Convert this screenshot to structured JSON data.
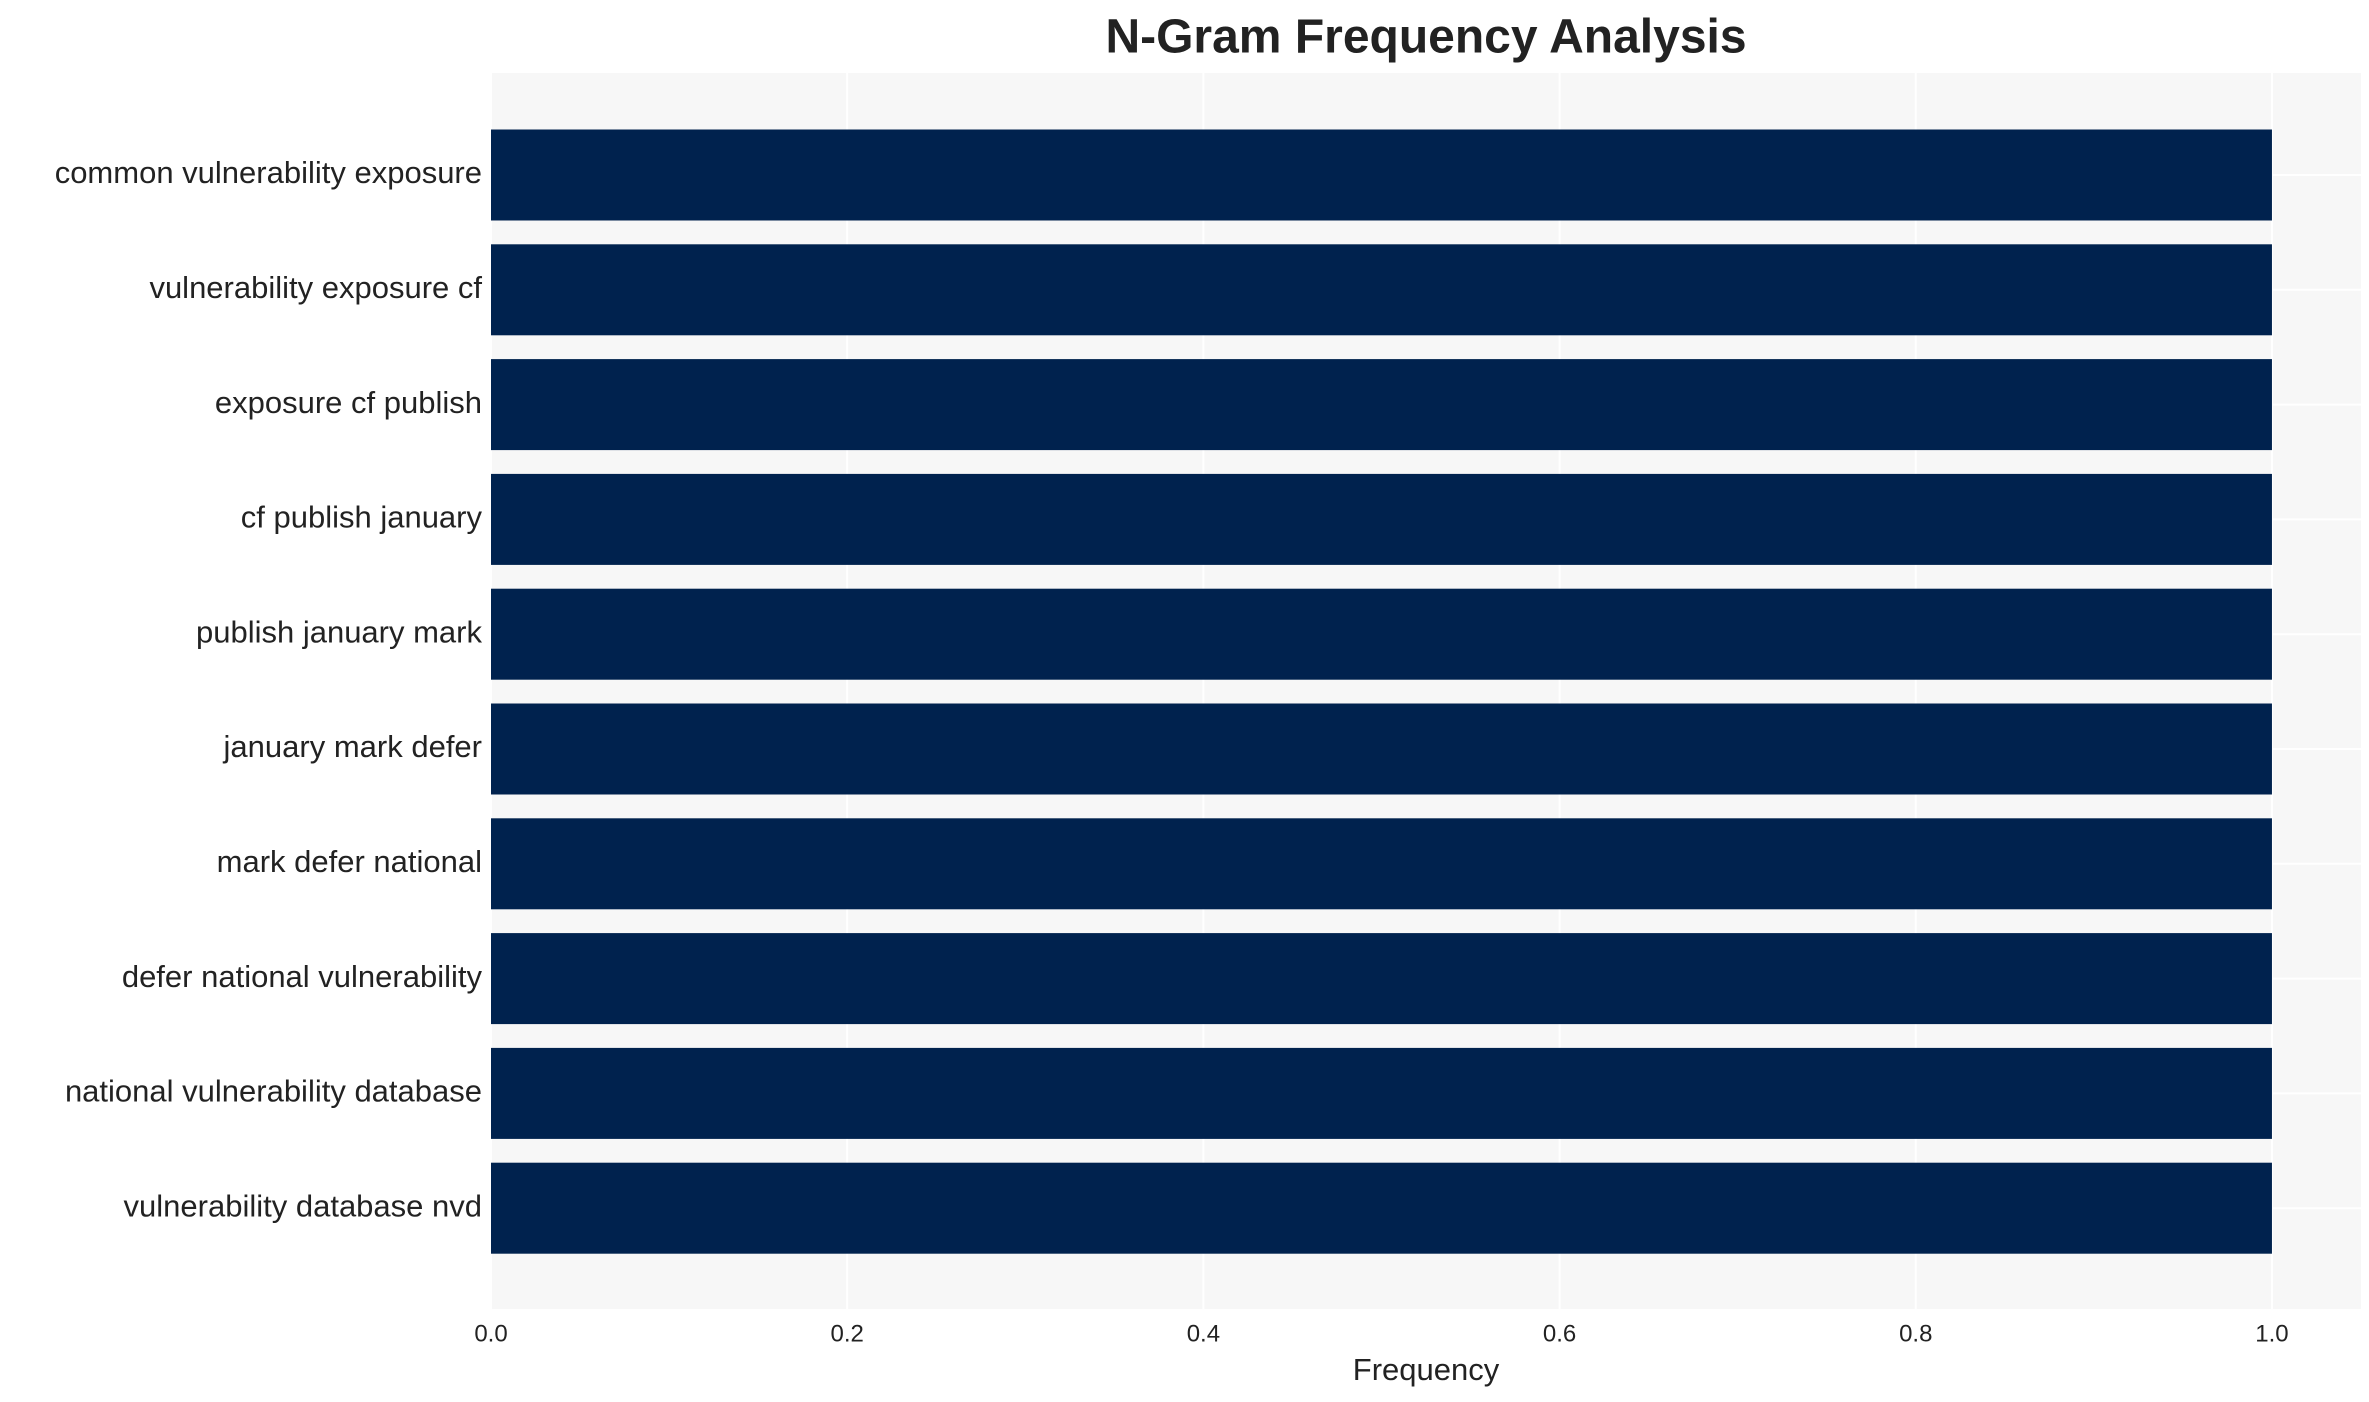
{
  "chart_data": {
    "type": "bar",
    "orientation": "horizontal",
    "title": "N-Gram Frequency Analysis",
    "x_label": "Frequency",
    "categories": [
      "common vulnerability exposure",
      "vulnerability exposure cf",
      "exposure cf publish",
      "cf publish january",
      "publish january mark",
      "january mark defer",
      "mark defer national",
      "defer national vulnerability",
      "national vulnerability database",
      "vulnerability database nvd"
    ],
    "values": [
      1,
      1,
      1,
      1,
      1,
      1,
      1,
      1,
      1,
      1
    ],
    "color": "#00224e",
    "xlim": [
      0,
      1.05
    ],
    "xticks": [
      {
        "value": 0,
        "label": "0.0"
      },
      0.2,
      0.4,
      0.6,
      0.8,
      {
        "value": 1,
        "label": "1.0"
      }
    ],
    "grid": true
  }
}
